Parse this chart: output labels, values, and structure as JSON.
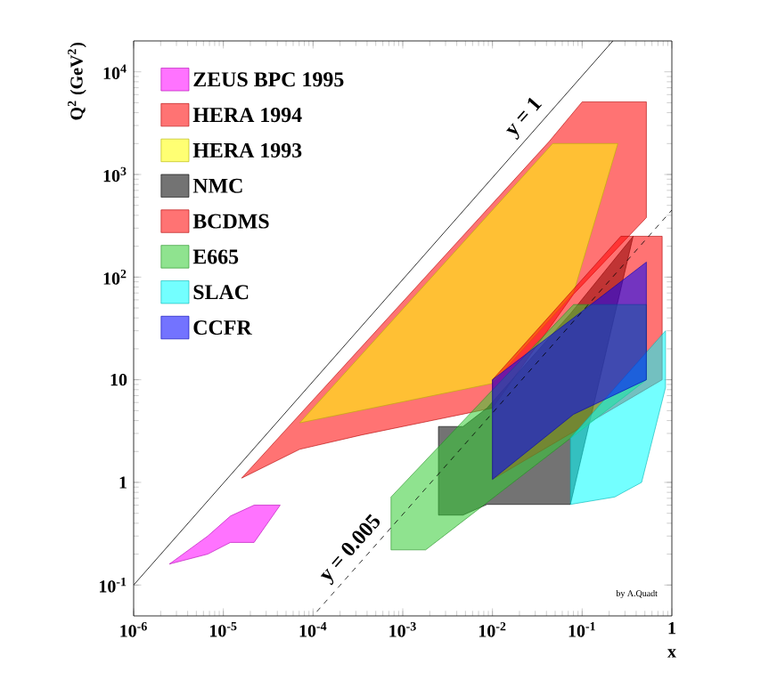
{
  "chart_data": {
    "type": "area",
    "xlabel": "x",
    "ylabel": "Q$^{2}$ (GeV$^{2}$)",
    "log": "xy",
    "legend": "top left",
    "xlim": [
      1e-06,
      1
    ],
    "ylim": [
      0.05,
      20000
    ],
    "xticks": [
      {
        "value": 1e-06,
        "label": "10$^{-6}$"
      },
      {
        "value": 1e-05,
        "label": "10$^{-5}$"
      },
      {
        "value": 0.0001,
        "label": "10$^{-4}$"
      },
      {
        "value": 0.001,
        "label": "10$^{-3}$"
      },
      {
        "value": 0.01,
        "label": "10$^{-2}$"
      },
      {
        "value": 0.1,
        "label": "10$^{-1}$"
      },
      1
    ],
    "yticks": [
      {
        "value": 0.1,
        "label": "10$^{-1}$"
      },
      1,
      10,
      {
        "value": 100,
        "label": "10$^{2}$"
      },
      {
        "value": 1000,
        "label": "10$^{3}$"
      },
      {
        "value": 10000,
        "label": "10$^{4}$"
      }
    ],
    "annotations": [
      "by A.Quadt"
    ],
    "series": [
      {
        "name": "ZEUS BPC 1995",
        "color": "#ff00ff",
        "x": [
          2.5e-06,
          6.7e-06,
          1.2e-05,
          2.2e-05,
          4.3e-05,
          2.2e-05,
          1.2e-05,
          6.7e-06
        ],
        "values": [
          0.16,
          0.3,
          0.47,
          0.6,
          0.6,
          0.26,
          0.26,
          0.2
        ]
      },
      {
        "name": "HERA 1994",
        "color": "#ff0000",
        "x": [
          1.6e-05,
          0.043,
          0.1,
          0.52,
          0.52,
          0.08,
          0.01,
          0.00035,
          7.1e-05
        ],
        "values": [
          1.1,
          2100,
          5100,
          5100,
          380,
          68,
          5.3,
          2.9,
          2.1
        ]
      },
      {
        "name": "HERA 1993",
        "color": "#ffff00",
        "x": [
          7.1e-05,
          0.047,
          0.25,
          0.08,
          0.01
        ],
        "values": [
          3.8,
          2000,
          2000,
          70,
          9.2
        ]
      },
      {
        "name": "NMC",
        "color": "#000000",
        "x": [
          0.0025,
          0.0047,
          0.0087,
          0.074,
          0.37,
          0.074,
          0.0087,
          0.0047,
          0.0025
        ],
        "values": [
          3.5,
          3.5,
          5.3,
          44,
          250,
          0.61,
          0.61,
          0.48,
          0.48
        ]
      },
      {
        "name": "BCDMS",
        "color": "#ff0000",
        "x": [
          0.01,
          0.27,
          0.78,
          0.78,
          0.01
        ],
        "values": [
          10,
          250,
          250,
          10,
          1.07
        ]
      },
      {
        "name": "E665",
        "color": "#33cc33",
        "x": [
          0.00074,
          0.08,
          0.52,
          0.52,
          0.0018,
          0.00074
        ],
        "values": [
          0.72,
          54,
          54,
          10,
          0.22,
          0.22
        ]
      },
      {
        "name": "SLAC",
        "color": "#00ffff",
        "x": [
          0.074,
          0.85,
          0.85,
          0.46,
          0.23,
          0.074
        ],
        "values": [
          2.7,
          30,
          8.4,
          1.0,
          0.72,
          0.61
        ]
      },
      {
        "name": "CCFR",
        "color": "#0000ff",
        "x": [
          0.01,
          0.08,
          0.52,
          0.52,
          0.08,
          0.01
        ],
        "values": [
          10,
          40,
          140,
          10,
          4.6,
          1.07
        ]
      },
      {
        "name": "y = 1",
        "type": "line",
        "color": "#000000",
        "line_style": "solid",
        "x": [
          1e-06,
          0.22
        ],
        "values": [
          0.1,
          20000
        ]
      },
      {
        "name": "y = 0.005",
        "type": "line",
        "color": "#000000",
        "line_style": "dashed",
        "x": [
          0.00011,
          1
        ],
        "values": [
          0.055,
          450
        ]
      }
    ]
  }
}
